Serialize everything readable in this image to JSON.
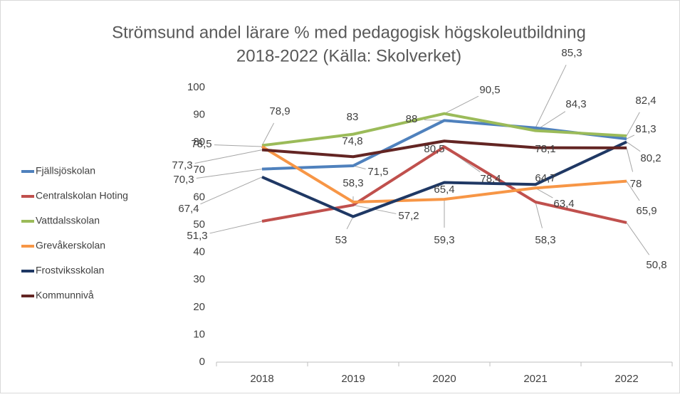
{
  "chart_data": {
    "type": "line",
    "title": [
      "Strömsund andel lärare % med pedagogisk högskoleutbildning",
      "2018-2022 (Källa: Skolverket)"
    ],
    "categories": [
      "2018",
      "2019",
      "2020",
      "2021",
      "2022"
    ],
    "ylim": [
      0,
      100
    ],
    "yticks": [
      0,
      10,
      20,
      30,
      40,
      50,
      60,
      70,
      80,
      90,
      100
    ],
    "grid": false,
    "legend": "left",
    "series": [
      {
        "name": "Fjällsjöskolan",
        "color": "#4f81bd",
        "values": [
          70.3,
          71.5,
          88,
          85.3,
          81.3
        ],
        "value_labels": [
          "70,3",
          "71,5",
          "88",
          "85,3",
          "81,3"
        ]
      },
      {
        "name": "Centralskolan Hoting",
        "color": "#c0504d",
        "values": [
          51.3,
          57.2,
          78.4,
          58.3,
          50.8
        ],
        "value_labels": [
          "51,3",
          "57,2",
          "78,4",
          "58,3",
          "50,8"
        ]
      },
      {
        "name": "Vattdalsskolan",
        "color": "#9bbb59",
        "values": [
          78.9,
          83,
          90.5,
          84.3,
          82.4
        ],
        "value_labels": [
          "78,9",
          "83",
          "90,5",
          "84,3",
          "82,4"
        ]
      },
      {
        "name": "Grevåkerskolan",
        "color": "#f79646",
        "values": [
          78.5,
          58.3,
          59.3,
          63.4,
          65.9
        ],
        "value_labels": [
          "78,5",
          "58,3",
          "59,3",
          "63,4",
          "65,9"
        ]
      },
      {
        "name": "Frostviksskolan",
        "color": "#1f3864",
        "values": [
          67.4,
          53,
          65.4,
          64.7,
          80.2
        ],
        "value_labels": [
          "67,4",
          "53",
          "65,4",
          "64,7",
          "80,2"
        ]
      },
      {
        "name": "Kommunnivå",
        "color": "#632523",
        "values": [
          77.3,
          74.8,
          80.5,
          78.1,
          78
        ],
        "value_labels": [
          "77,3",
          "74,8",
          "80,5",
          "78,1",
          "78"
        ]
      }
    ]
  }
}
